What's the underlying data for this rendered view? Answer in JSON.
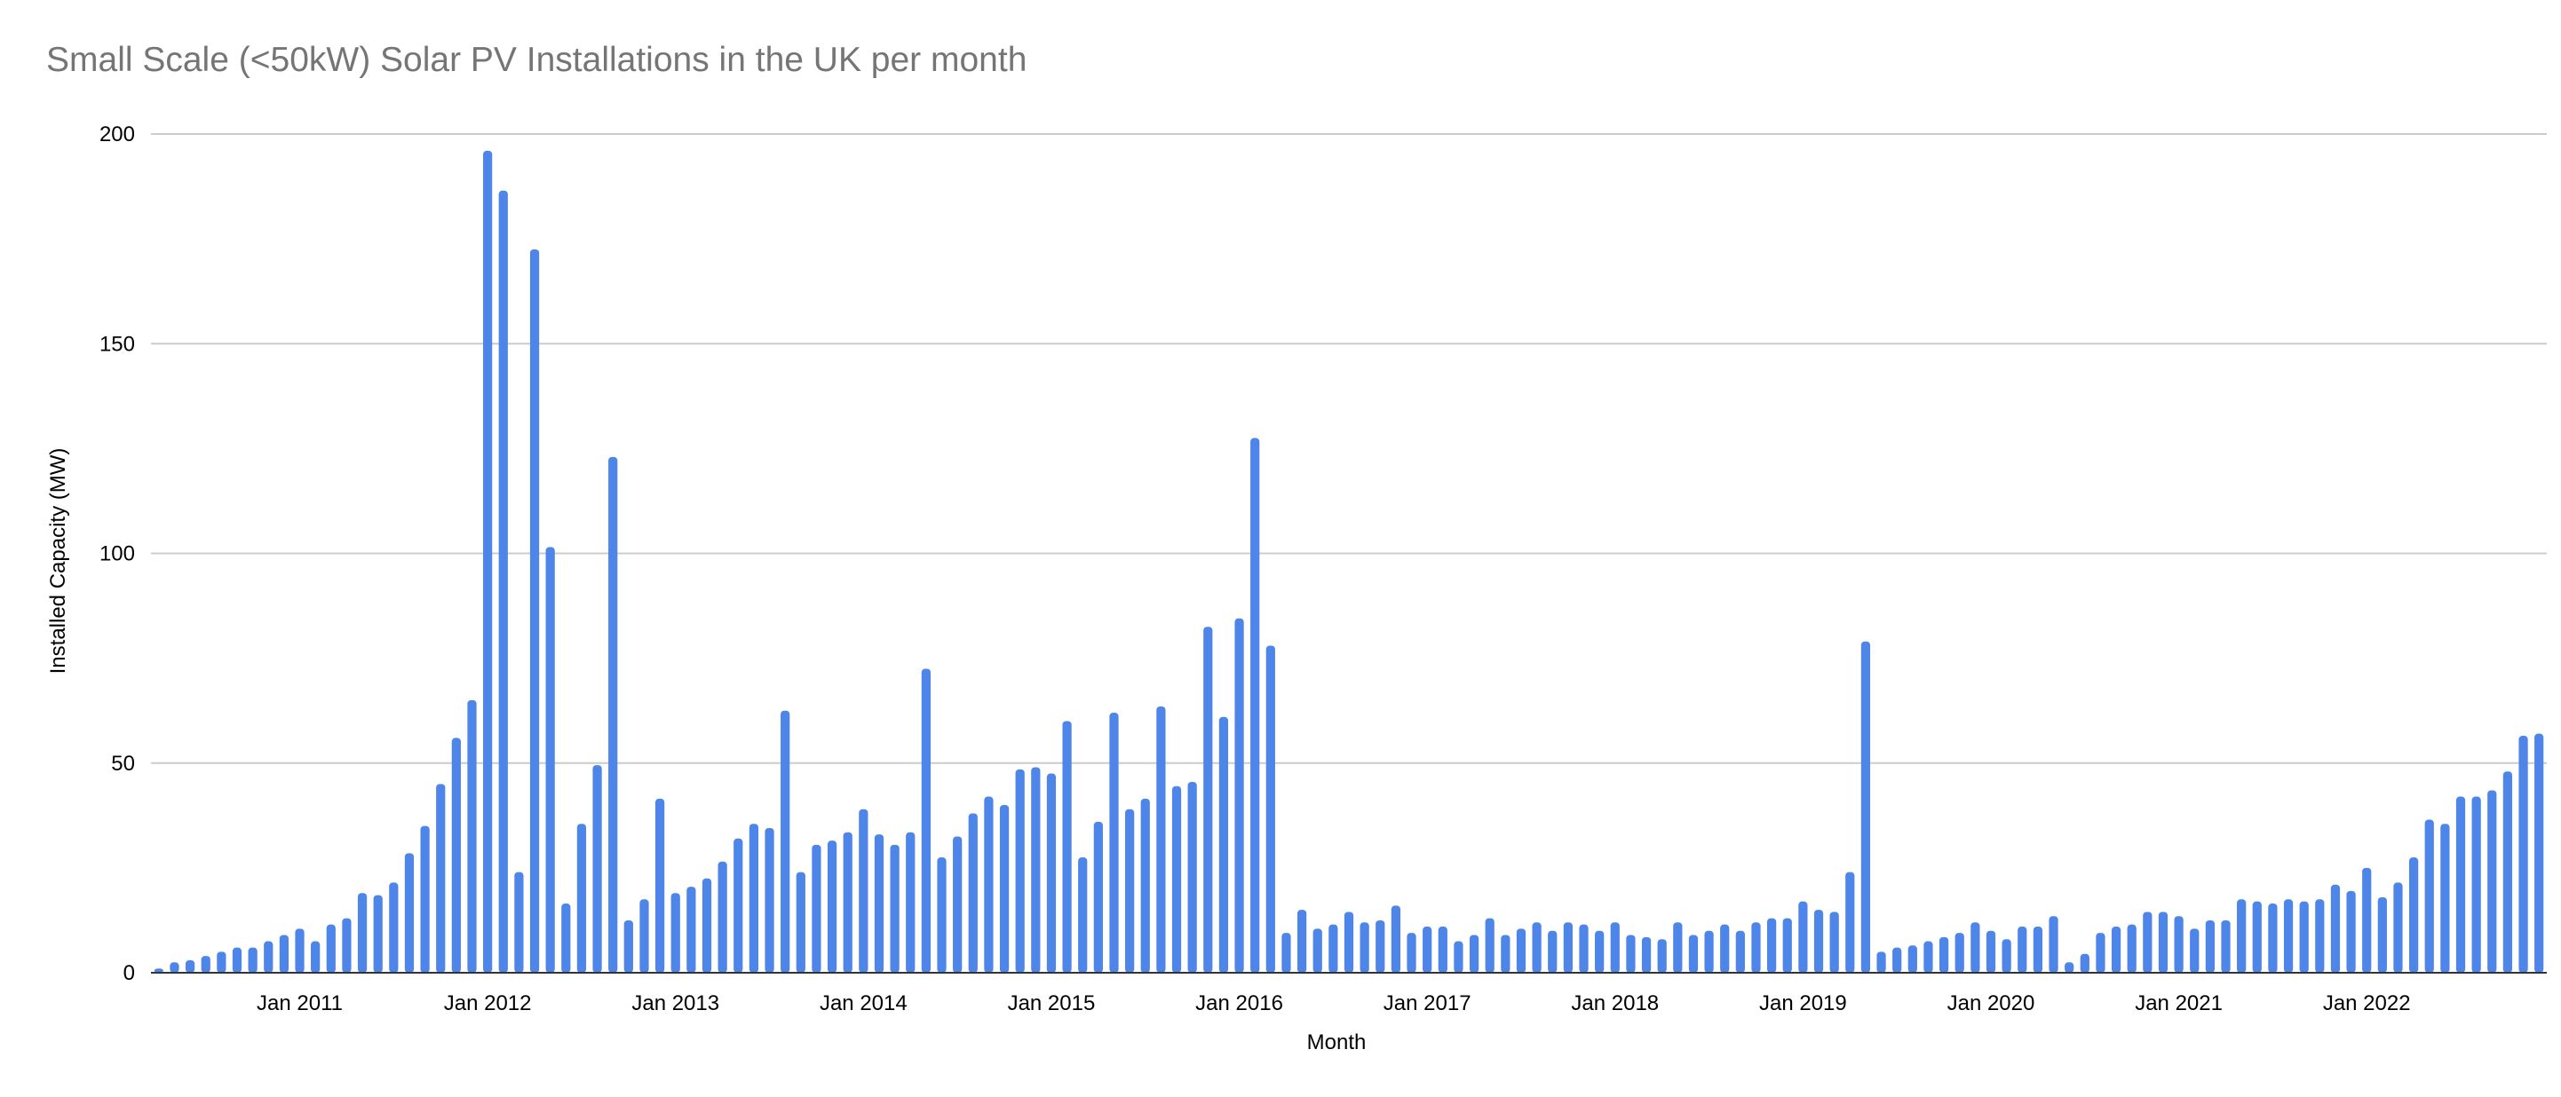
{
  "chart_data": {
    "type": "bar",
    "title": "Small Scale (<50kW) Solar PV Installations in the UK per month",
    "xlabel": "Month",
    "ylabel": "Installed Capacity (MW)",
    "ylim": [
      0,
      200
    ],
    "yticks": [
      0,
      50,
      100,
      150,
      200
    ],
    "grid": true,
    "legend": "none",
    "bar_color": "#4e85e8",
    "x_start": "2010-04",
    "x_end": "2022-12",
    "x_tick_labels": [
      {
        "month": "2011-01",
        "label": "Jan 2011"
      },
      {
        "month": "2012-01",
        "label": "Jan 2012"
      },
      {
        "month": "2013-01",
        "label": "Jan 2013"
      },
      {
        "month": "2014-01",
        "label": "Jan 2014"
      },
      {
        "month": "2015-01",
        "label": "Jan 2015"
      },
      {
        "month": "2016-01",
        "label": "Jan 2016"
      },
      {
        "month": "2017-01",
        "label": "Jan 2017"
      },
      {
        "month": "2018-01",
        "label": "Jan 2018"
      },
      {
        "month": "2019-01",
        "label": "Jan 2019"
      },
      {
        "month": "2020-01",
        "label": "Jan 2020"
      },
      {
        "month": "2021-01",
        "label": "Jan 2021"
      },
      {
        "month": "2022-01",
        "label": "Jan 2022"
      }
    ],
    "values": [
      1,
      2.5,
      3,
      4,
      5,
      6,
      6,
      7.5,
      9,
      10.5,
      7.5,
      11.5,
      13,
      19,
      18.5,
      21.5,
      28.5,
      35,
      45,
      56,
      65,
      196,
      186.5,
      24,
      172.5,
      101.5,
      16.5,
      35.5,
      49.5,
      123,
      12.5,
      17.5,
      41.5,
      19,
      20.5,
      22.5,
      26.5,
      32,
      35.5,
      34.5,
      62.5,
      24,
      30.5,
      31.5,
      33.5,
      39,
      33,
      30.5,
      33.5,
      72.5,
      27.5,
      32.5,
      38,
      42,
      40,
      48.5,
      49,
      47.5,
      60,
      27.5,
      36,
      62,
      39,
      41.5,
      63.5,
      44.5,
      45.5,
      82.5,
      61,
      84.5,
      127.5,
      78,
      9.5,
      15,
      10.5,
      11.5,
      14.5,
      12,
      12.5,
      16,
      9.5,
      11,
      11,
      7.5,
      9,
      13,
      9,
      10.5,
      12,
      10,
      12,
      11.5,
      10,
      12,
      9,
      8.5,
      8,
      12,
      9,
      10,
      11.5,
      10,
      12,
      13,
      13,
      17,
      15,
      14.5,
      24,
      79,
      5,
      6,
      6.5,
      7.5,
      8.5,
      9.5,
      12,
      10,
      8,
      11,
      11,
      13.5,
      2.5,
      4.5,
      9.5,
      11,
      11.5,
      14.5,
      14.5,
      13.5,
      10.5,
      12.5,
      12.5,
      17.5,
      17,
      16.5,
      17.5,
      17,
      17.5,
      21,
      19.5,
      25,
      18,
      21.5,
      27.5,
      36.5,
      35.5,
      42,
      42,
      43.5,
      48,
      56.5,
      57
    ]
  }
}
